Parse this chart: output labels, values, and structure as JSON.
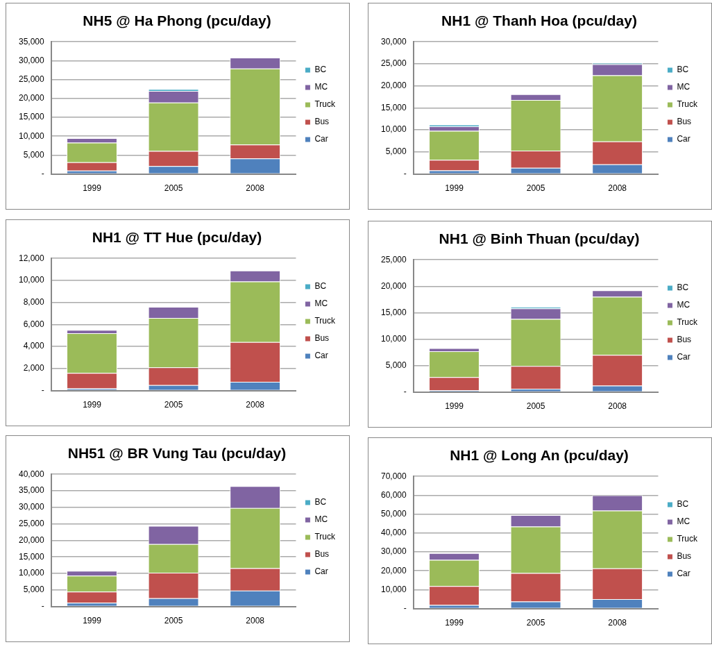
{
  "chart_data": [
    {
      "type": "bar",
      "title": "NH5 @ Ha Phong (pcu/day)",
      "categories": [
        "1999",
        "2005",
        "2008"
      ],
      "stacked": true,
      "legend": "right",
      "grid": "y",
      "ylim": [
        0,
        35000
      ],
      "yticks": [
        {
          "value": 0,
          "label": "-"
        },
        {
          "value": 5000,
          "label": "5,000"
        },
        {
          "value": 10000,
          "label": "10,000"
        },
        {
          "value": 15000,
          "label": "15,000"
        },
        {
          "value": 20000,
          "label": "20,000"
        },
        {
          "value": 25000,
          "label": "25,000"
        },
        {
          "value": 30000,
          "label": "30,000"
        },
        {
          "value": 35000,
          "label": "35,000"
        }
      ],
      "series": [
        {
          "name": "Car",
          "color": "#4f81bd",
          "values": [
            900,
            2100,
            4100
          ]
        },
        {
          "name": "Bus",
          "color": "#c0504d",
          "values": [
            2200,
            4000,
            3700
          ]
        },
        {
          "name": "Truck",
          "color": "#9bbb59",
          "values": [
            5200,
            12800,
            20100
          ]
        },
        {
          "name": "MC",
          "color": "#8064a2",
          "values": [
            1200,
            3100,
            2900
          ]
        },
        {
          "name": "BC",
          "color": "#4bacc6",
          "values": [
            0,
            500,
            0
          ]
        }
      ]
    },
    {
      "type": "bar",
      "title": "NH1 @ Thanh Hoa (pcu/day)",
      "categories": [
        "1999",
        "2005",
        "2008"
      ],
      "stacked": true,
      "legend": "right",
      "grid": "y",
      "ylim": [
        0,
        30000
      ],
      "yticks": [
        {
          "value": 0,
          "label": "-"
        },
        {
          "value": 5000,
          "label": "5,000"
        },
        {
          "value": 10000,
          "label": "10,000"
        },
        {
          "value": 15000,
          "label": "15,000"
        },
        {
          "value": 20000,
          "label": "20,000"
        },
        {
          "value": 25000,
          "label": "25,000"
        },
        {
          "value": 30000,
          "label": "30,000"
        }
      ],
      "series": [
        {
          "name": "Car",
          "color": "#4f81bd",
          "values": [
            800,
            1400,
            2200
          ]
        },
        {
          "name": "Bus",
          "color": "#c0504d",
          "values": [
            2400,
            3900,
            5200
          ]
        },
        {
          "name": "Truck",
          "color": "#9bbb59",
          "values": [
            6600,
            11500,
            15000
          ]
        },
        {
          "name": "MC",
          "color": "#8064a2",
          "values": [
            1000,
            1300,
            2500
          ]
        },
        {
          "name": "BC",
          "color": "#4bacc6",
          "values": [
            400,
            0,
            300
          ]
        }
      ]
    },
    {
      "type": "bar",
      "title": "NH1 @ TT Hue (pcu/day)",
      "categories": [
        "1999",
        "2005",
        "2008"
      ],
      "stacked": true,
      "legend": "right",
      "grid": "y",
      "ylim": [
        0,
        12000
      ],
      "yticks": [
        {
          "value": 0,
          "label": "-"
        },
        {
          "value": 2000,
          "label": "2,000"
        },
        {
          "value": 4000,
          "label": "4,000"
        },
        {
          "value": 6000,
          "label": "6,000"
        },
        {
          "value": 8000,
          "label": "8,000"
        },
        {
          "value": 10000,
          "label": "10,000"
        },
        {
          "value": 12000,
          "label": "12,000"
        }
      ],
      "series": [
        {
          "name": "Car",
          "color": "#4f81bd",
          "values": [
            200,
            500,
            800
          ]
        },
        {
          "name": "Bus",
          "color": "#c0504d",
          "values": [
            1400,
            1600,
            3600
          ]
        },
        {
          "name": "Truck",
          "color": "#9bbb59",
          "values": [
            3600,
            4500,
            5500
          ]
        },
        {
          "name": "MC",
          "color": "#8064a2",
          "values": [
            300,
            1000,
            1000
          ]
        },
        {
          "name": "BC",
          "color": "#4bacc6",
          "values": [
            0,
            0,
            0
          ]
        }
      ]
    },
    {
      "type": "bar",
      "title": "NH1 @ Binh Thuan (pcu/day)",
      "categories": [
        "1999",
        "2005",
        "2008"
      ],
      "stacked": true,
      "legend": "right",
      "grid": "y",
      "ylim": [
        0,
        25000
      ],
      "yticks": [
        {
          "value": 0,
          "label": "-"
        },
        {
          "value": 5000,
          "label": "5,000"
        },
        {
          "value": 10000,
          "label": "10,000"
        },
        {
          "value": 15000,
          "label": "15,000"
        },
        {
          "value": 20000,
          "label": "20,000"
        },
        {
          "value": 25000,
          "label": "25,000"
        }
      ],
      "series": [
        {
          "name": "Car",
          "color": "#4f81bd",
          "values": [
            300,
            600,
            1200
          ]
        },
        {
          "name": "Bus",
          "color": "#c0504d",
          "values": [
            2500,
            4300,
            5800
          ]
        },
        {
          "name": "Truck",
          "color": "#9bbb59",
          "values": [
            4900,
            8900,
            11000
          ]
        },
        {
          "name": "MC",
          "color": "#8064a2",
          "values": [
            600,
            2000,
            1200
          ]
        },
        {
          "name": "BC",
          "color": "#4bacc6",
          "values": [
            0,
            300,
            0
          ]
        }
      ]
    },
    {
      "type": "bar",
      "title": "NH51 @ BR Vung Tau (pcu/day)",
      "categories": [
        "1999",
        "2005",
        "2008"
      ],
      "stacked": true,
      "legend": "right",
      "grid": "y",
      "ylim": [
        0,
        40000
      ],
      "yticks": [
        {
          "value": 0,
          "label": "-"
        },
        {
          "value": 5000,
          "label": "5,000"
        },
        {
          "value": 10000,
          "label": "10,000"
        },
        {
          "value": 15000,
          "label": "15,000"
        },
        {
          "value": 20000,
          "label": "20,000"
        },
        {
          "value": 25000,
          "label": "25,000"
        },
        {
          "value": 30000,
          "label": "30,000"
        },
        {
          "value": 35000,
          "label": "35,000"
        },
        {
          "value": 40000,
          "label": "40,000"
        }
      ],
      "series": [
        {
          "name": "Car",
          "color": "#4f81bd",
          "values": [
            1100,
            2500,
            4800
          ]
        },
        {
          "name": "Bus",
          "color": "#c0504d",
          "values": [
            3400,
            7700,
            6800
          ]
        },
        {
          "name": "Truck",
          "color": "#9bbb59",
          "values": [
            4800,
            8700,
            18200
          ]
        },
        {
          "name": "MC",
          "color": "#8064a2",
          "values": [
            1500,
            5500,
            6600
          ]
        },
        {
          "name": "BC",
          "color": "#4bacc6",
          "values": [
            0,
            0,
            0
          ]
        }
      ]
    },
    {
      "type": "bar",
      "title": "NH1 @ Long An (pcu/day)",
      "categories": [
        "1999",
        "2005",
        "2008"
      ],
      "stacked": true,
      "legend": "right",
      "grid": "y",
      "ylim": [
        0,
        70000
      ],
      "yticks": [
        {
          "value": 0,
          "label": "-"
        },
        {
          "value": 10000,
          "label": "10,000"
        },
        {
          "value": 20000,
          "label": "20,000"
        },
        {
          "value": 30000,
          "label": "30,000"
        },
        {
          "value": 40000,
          "label": "40,000"
        },
        {
          "value": 50000,
          "label": "50,000"
        },
        {
          "value": 60000,
          "label": "60,000"
        },
        {
          "value": 70000,
          "label": "70,000"
        }
      ],
      "series": [
        {
          "name": "Car",
          "color": "#4f81bd",
          "values": [
            1900,
            3700,
            5000
          ]
        },
        {
          "name": "Bus",
          "color": "#c0504d",
          "values": [
            10000,
            15100,
            16300
          ]
        },
        {
          "name": "Truck",
          "color": "#9bbb59",
          "values": [
            13900,
            24600,
            30600
          ]
        },
        {
          "name": "MC",
          "color": "#8064a2",
          "values": [
            3600,
            6100,
            8100
          ]
        },
        {
          "name": "BC",
          "color": "#4bacc6",
          "values": [
            0,
            0,
            0
          ]
        }
      ]
    }
  ]
}
